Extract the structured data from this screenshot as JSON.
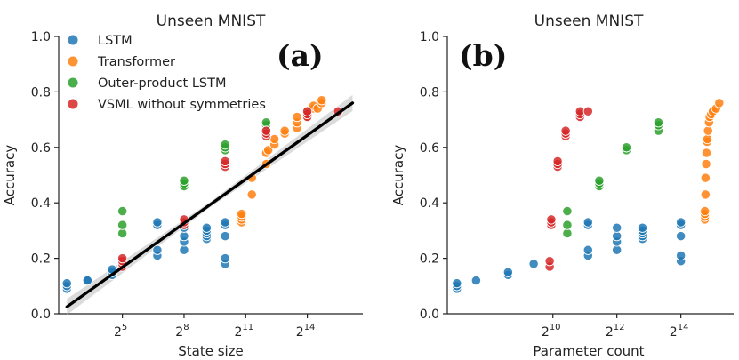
{
  "colors": {
    "LSTM": "#1f77b4",
    "Transformer": "#ff7f0e",
    "Outer-product LSTM": "#2ca02c",
    "VSML without symmetries": "#d62728",
    "fit": "#000000"
  },
  "legend": [
    "LSTM",
    "Transformer",
    "Outer-product LSTM",
    "VSML without symmetries"
  ],
  "chart_data": [
    {
      "type": "scatter",
      "panel_label": "(a)",
      "title": "Unseen MNIST",
      "xlabel": "State size",
      "ylabel": "Accuracy",
      "x_scale": "log2",
      "xlim_log2": [
        1.9,
        16.7
      ],
      "x_ticks": [
        {
          "exp": 5,
          "base": "2",
          "sup": "5"
        },
        {
          "exp": 8,
          "base": "2",
          "sup": "8"
        },
        {
          "exp": 11,
          "base": "2",
          "sup": "11"
        },
        {
          "exp": 14,
          "base": "2",
          "sup": "14"
        }
      ],
      "ylim": [
        0,
        1
      ],
      "y_ticks": [
        "0.0",
        "0.2",
        "0.4",
        "0.6",
        "0.8",
        "1.0"
      ],
      "legend_position": "upper-left",
      "regression": {
        "x_log2": [
          2.3,
          16.2
        ],
        "y": [
          0.025,
          0.76
        ]
      },
      "series": [
        {
          "name": "LSTM",
          "points": [
            [
              2.3,
              0.09
            ],
            [
              2.3,
              0.1
            ],
            [
              2.3,
              0.11
            ],
            [
              3.3,
              0.12
            ],
            [
              3.3,
              0.12
            ],
            [
              4.5,
              0.14
            ],
            [
              4.5,
              0.15
            ],
            [
              4.5,
              0.16
            ],
            [
              6.7,
              0.21
            ],
            [
              6.7,
              0.23
            ],
            [
              6.7,
              0.32
            ],
            [
              6.7,
              0.33
            ],
            [
              8,
              0.23
            ],
            [
              8,
              0.26
            ],
            [
              8,
              0.28
            ],
            [
              8,
              0.31
            ],
            [
              9.1,
              0.27
            ],
            [
              9.1,
              0.28
            ],
            [
              9.1,
              0.29
            ],
            [
              9.1,
              0.3
            ],
            [
              9.1,
              0.31
            ],
            [
              10,
              0.18
            ],
            [
              10,
              0.2
            ],
            [
              10,
              0.28
            ],
            [
              10,
              0.32
            ],
            [
              10,
              0.33
            ]
          ]
        },
        {
          "name": "Transformer",
          "points": [
            [
              10.8,
              0.33
            ],
            [
              10.8,
              0.34
            ],
            [
              10.8,
              0.35
            ],
            [
              10.8,
              0.36
            ],
            [
              11.3,
              0.43
            ],
            [
              11.3,
              0.49
            ],
            [
              12,
              0.54
            ],
            [
              12,
              0.58
            ],
            [
              12.1,
              0.59
            ],
            [
              12.4,
              0.61
            ],
            [
              12.4,
              0.63
            ],
            [
              12.9,
              0.65
            ],
            [
              12.9,
              0.66
            ],
            [
              13.5,
              0.67
            ],
            [
              13.5,
              0.69
            ],
            [
              13.5,
              0.71
            ],
            [
              14,
              0.71
            ],
            [
              14,
              0.72
            ],
            [
              14,
              0.73
            ],
            [
              14.3,
              0.74
            ],
            [
              14.3,
              0.75
            ],
            [
              14.5,
              0.74
            ],
            [
              14.7,
              0.76
            ],
            [
              14.7,
              0.77
            ]
          ]
        },
        {
          "name": "Outer-product LSTM",
          "points": [
            [
              5,
              0.29
            ],
            [
              5,
              0.32
            ],
            [
              5,
              0.37
            ],
            [
              8,
              0.46
            ],
            [
              8,
              0.47
            ],
            [
              8,
              0.48
            ],
            [
              10,
              0.59
            ],
            [
              10,
              0.6
            ],
            [
              10,
              0.61
            ],
            [
              12,
              0.66
            ],
            [
              12,
              0.68
            ],
            [
              12,
              0.69
            ]
          ]
        },
        {
          "name": "VSML without symmetries",
          "points": [
            [
              5,
              0.17
            ],
            [
              5,
              0.18
            ],
            [
              5,
              0.19
            ],
            [
              5,
              0.2
            ],
            [
              8,
              0.32
            ],
            [
              8,
              0.33
            ],
            [
              8,
              0.34
            ],
            [
              10,
              0.53
            ],
            [
              10,
              0.54
            ],
            [
              10,
              0.55
            ],
            [
              12,
              0.64
            ],
            [
              12,
              0.65
            ],
            [
              12,
              0.66
            ],
            [
              14,
              0.71
            ],
            [
              14,
              0.72
            ],
            [
              14,
              0.73
            ],
            [
              15.5,
              0.73
            ]
          ]
        }
      ]
    },
    {
      "type": "scatter",
      "panel_label": "(b)",
      "title": "Unseen MNIST",
      "xlabel": "Parameter count",
      "ylabel": "Accuracy",
      "x_scale": "log2",
      "xlim_log2": [
        6.7,
        15.65
      ],
      "x_ticks": [
        {
          "exp": 10,
          "base": "2",
          "sup": "10"
        },
        {
          "exp": 12,
          "base": "2",
          "sup": "12"
        },
        {
          "exp": 14,
          "base": "2",
          "sup": "14"
        }
      ],
      "ylim": [
        0,
        1
      ],
      "y_ticks": [
        "0.0",
        "0.2",
        "0.4",
        "0.6",
        "0.8",
        "1.0"
      ],
      "series": [
        {
          "name": "LSTM",
          "points": [
            [
              7,
              0.09
            ],
            [
              7,
              0.1
            ],
            [
              7,
              0.11
            ],
            [
              7.6,
              0.12
            ],
            [
              8.6,
              0.14
            ],
            [
              8.6,
              0.15
            ],
            [
              9.4,
              0.18
            ],
            [
              11.1,
              0.21
            ],
            [
              11.1,
              0.23
            ],
            [
              11.1,
              0.32
            ],
            [
              11.1,
              0.33
            ],
            [
              12,
              0.23
            ],
            [
              12,
              0.26
            ],
            [
              12,
              0.28
            ],
            [
              12,
              0.31
            ],
            [
              12.8,
              0.27
            ],
            [
              12.8,
              0.28
            ],
            [
              12.8,
              0.29
            ],
            [
              12.8,
              0.3
            ],
            [
              12.8,
              0.31
            ],
            [
              14,
              0.19
            ],
            [
              14,
              0.21
            ],
            [
              14,
              0.28
            ],
            [
              14,
              0.32
            ],
            [
              14,
              0.33
            ]
          ]
        },
        {
          "name": "Transformer",
          "points": [
            [
              14.75,
              0.34
            ],
            [
              14.75,
              0.35
            ],
            [
              14.75,
              0.36
            ],
            [
              14.75,
              0.37
            ],
            [
              14.77,
              0.43
            ],
            [
              14.77,
              0.49
            ],
            [
              14.79,
              0.54
            ],
            [
              14.8,
              0.58
            ],
            [
              14.82,
              0.62
            ],
            [
              14.83,
              0.63
            ],
            [
              14.85,
              0.66
            ],
            [
              14.88,
              0.69
            ],
            [
              14.9,
              0.71
            ],
            [
              14.95,
              0.72
            ],
            [
              15,
              0.73
            ],
            [
              15.1,
              0.74
            ],
            [
              15.2,
              0.76
            ]
          ]
        },
        {
          "name": "Outer-product LSTM",
          "points": [
            [
              10.45,
              0.29
            ],
            [
              10.45,
              0.32
            ],
            [
              10.45,
              0.37
            ],
            [
              11.45,
              0.46
            ],
            [
              11.45,
              0.47
            ],
            [
              11.45,
              0.48
            ],
            [
              12.3,
              0.59
            ],
            [
              12.3,
              0.6
            ],
            [
              13.3,
              0.66
            ],
            [
              13.3,
              0.68
            ],
            [
              13.3,
              0.69
            ]
          ]
        },
        {
          "name": "VSML without symmetries",
          "points": [
            [
              9.9,
              0.17
            ],
            [
              9.9,
              0.19
            ],
            [
              9.95,
              0.32
            ],
            [
              9.95,
              0.33
            ],
            [
              9.95,
              0.34
            ],
            [
              10.15,
              0.53
            ],
            [
              10.15,
              0.54
            ],
            [
              10.15,
              0.55
            ],
            [
              10.4,
              0.64
            ],
            [
              10.4,
              0.65
            ],
            [
              10.4,
              0.66
            ],
            [
              10.85,
              0.71
            ],
            [
              10.85,
              0.72
            ],
            [
              10.85,
              0.73
            ],
            [
              11.1,
              0.73
            ]
          ]
        }
      ]
    }
  ]
}
